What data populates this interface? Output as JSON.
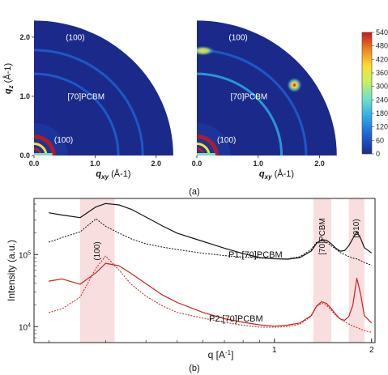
{
  "figure": {
    "panel_a_label": "(a)",
    "panel_b_label": "(b)"
  },
  "chart_data": [
    {
      "type": "heatmap",
      "title": "P1:[70]PCBM",
      "xlabel": "q_xy (Å-1)",
      "ylabel": "q_z (Å-1)",
      "xlim": [
        0,
        2.6
      ],
      "ylim": [
        0,
        2.6
      ],
      "xticks": [
        "0.0",
        "1.0",
        "2.0"
      ],
      "yticks": [
        "0.0",
        "1.0",
        "2.0"
      ],
      "annotations": [
        "(100)",
        "[70]PCBM",
        "(100)"
      ],
      "rings": [
        {
          "q": 0.32,
          "intensity": 540,
          "label": "(100)"
        },
        {
          "q": 1.38,
          "intensity": 130,
          "label": "[70]PCBM"
        },
        {
          "q": 1.78,
          "intensity": 95,
          "label": ""
        }
      ]
    },
    {
      "type": "heatmap",
      "title": "P2:[70]PCBM",
      "xlabel": "q_xy (Å-1)",
      "xlim": [
        0,
        2.6
      ],
      "ylim": [
        0,
        2.6
      ],
      "xticks": [
        "0.0",
        "1.0",
        "2.0"
      ],
      "annotations": [
        "(100)",
        "[70]PCBM",
        "(100)"
      ],
      "rings": [
        {
          "q": 0.32,
          "intensity": 540,
          "label": "(100)"
        },
        {
          "q": 1.38,
          "intensity": 140,
          "label": "[70]PCBM"
        },
        {
          "q": 1.78,
          "intensity": 110,
          "label": ""
        }
      ],
      "peaks": [
        {
          "qxy": 0.1,
          "qz": 1.77,
          "intensity": 420
        },
        {
          "qxy": 1.59,
          "qz": 1.19,
          "intensity": 540
        }
      ],
      "colorbar": {
        "ticks": [
          540,
          480,
          420,
          360,
          300,
          240,
          180,
          120,
          60,
          0
        ],
        "range": [
          0,
          540
        ]
      }
    },
    {
      "type": "line",
      "xlabel": "q [A-1]",
      "ylabel": "Intensity (a.u.)",
      "xscale": "log",
      "yscale": "log",
      "xlim": [
        0.18,
        2.05
      ],
      "ylim": [
        6000,
        600000
      ],
      "xticks": [
        "1",
        "2"
      ],
      "yticks": [
        "10^5",
        "10^4"
      ],
      "bands": [
        {
          "x": [
            0.25,
            0.32
          ],
          "label": "(100)"
        },
        {
          "x": [
            1.32,
            1.5
          ],
          "label": "[70]PCBM"
        },
        {
          "x": [
            1.7,
            1.9
          ],
          "label": "(010)"
        }
      ],
      "group_labels": [
        "P1:[70]PCBM",
        "P2:[70]PCBM"
      ],
      "series": [
        {
          "color": "#111111",
          "style": "solid",
          "x": [
            0.2,
            0.22,
            0.25,
            0.28,
            0.3,
            0.33,
            0.36,
            0.4,
            0.45,
            0.5,
            0.6,
            0.7,
            0.8,
            0.9,
            1.0,
            1.1,
            1.2,
            1.3,
            1.35,
            1.4,
            1.45,
            1.5,
            1.55,
            1.6,
            1.65,
            1.7,
            1.75,
            1.8,
            1.85,
            1.9,
            2.0
          ],
          "y": [
            380000,
            350000,
            320000,
            450000,
            500000,
            480000,
            420000,
            330000,
            250000,
            200000,
            155000,
            125000,
            105000,
            92000,
            88000,
            86000,
            90000,
            110000,
            140000,
            158000,
            155000,
            140000,
            122000,
            112000,
            115000,
            135000,
            170000,
            210000,
            170000,
            125000,
            105000
          ]
        },
        {
          "color": "#111111",
          "style": "dotted",
          "x": [
            0.2,
            0.22,
            0.25,
            0.28,
            0.3,
            0.33,
            0.36,
            0.4,
            0.45,
            0.5,
            0.6,
            0.7,
            0.8,
            0.9,
            1.0,
            1.1,
            1.2,
            1.3,
            1.35,
            1.4,
            1.45,
            1.5,
            1.55,
            1.6,
            1.65,
            1.7,
            1.75,
            1.8,
            1.85,
            1.9,
            2.0
          ],
          "y": [
            150000,
            175000,
            210000,
            320000,
            250000,
            200000,
            165000,
            140000,
            125000,
            115000,
            102000,
            95000,
            91000,
            89000,
            88000,
            88000,
            95000,
            120000,
            150000,
            158000,
            150000,
            132000,
            118000,
            105000,
            98000,
            92000,
            88000,
            86000,
            82000,
            78000,
            72000
          ]
        },
        {
          "color": "#cc2222",
          "style": "solid",
          "x": [
            0.2,
            0.22,
            0.25,
            0.28,
            0.3,
            0.33,
            0.36,
            0.4,
            0.45,
            0.5,
            0.6,
            0.7,
            0.8,
            0.9,
            1.0,
            1.1,
            1.2,
            1.3,
            1.35,
            1.4,
            1.45,
            1.5,
            1.55,
            1.6,
            1.65,
            1.7,
            1.75,
            1.8,
            1.85,
            1.9,
            2.0
          ],
          "y": [
            42000,
            45000,
            38000,
            55000,
            75000,
            70000,
            55000,
            40000,
            28000,
            22000,
            16000,
            13000,
            11500,
            10500,
            10000,
            10300,
            11000,
            14000,
            19000,
            22000,
            21000,
            18000,
            15000,
            13000,
            12500,
            14000,
            20000,
            47000,
            28000,
            14000,
            11000
          ]
        },
        {
          "color": "#cc2222",
          "style": "dotted",
          "x": [
            0.2,
            0.22,
            0.25,
            0.28,
            0.3,
            0.33,
            0.36,
            0.4,
            0.45,
            0.5,
            0.6,
            0.7,
            0.8,
            0.9,
            1.0,
            1.1,
            1.2,
            1.3,
            1.35,
            1.4,
            1.45,
            1.5,
            1.55,
            1.6,
            1.65,
            1.7,
            1.75,
            1.8,
            1.85,
            1.9,
            2.0
          ],
          "y": [
            16000,
            18000,
            26000,
            65000,
            95000,
            60000,
            38000,
            26000,
            19000,
            15500,
            13000,
            11500,
            10500,
            10000,
            10000,
            10200,
            11000,
            14000,
            19000,
            21000,
            19500,
            16500,
            14000,
            12500,
            11500,
            10800,
            10200,
            9800,
            9400,
            9000,
            8500
          ]
        }
      ]
    }
  ]
}
